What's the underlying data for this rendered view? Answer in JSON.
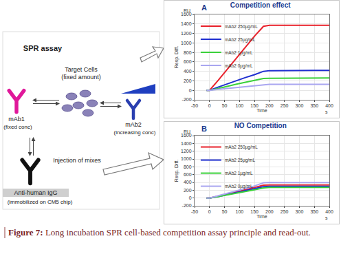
{
  "diagram": {
    "title": "SPR assay",
    "target": [
      "Target Cells",
      "(fixed amount)"
    ],
    "mab1": [
      "mAb1",
      "(fixed conc)"
    ],
    "mab2": [
      "mAb2",
      "(increasing conc)"
    ],
    "injection": "Injection of mixes",
    "capture": [
      "Anti-human IgG",
      "(immobilized on CM5 chip)"
    ]
  },
  "caption": {
    "label": "Figure 7:",
    "text": "Long incubation SPR cell-based competition assay principle and read-out."
  },
  "chart_data": [
    {
      "type": "line",
      "label": "A",
      "title": "Competition effect",
      "x_label": "Time",
      "x_unit": "s",
      "y_label": "Resp. Diff.",
      "y_unit": "RU",
      "x": [
        -10,
        0,
        30,
        60,
        90,
        120,
        150,
        180,
        200,
        250,
        300,
        350,
        400
      ],
      "series": [
        {
          "name": "mAb2 250µg/mL",
          "color": "#e8202a",
          "values": [
            0,
            0,
            220,
            450,
            680,
            910,
            1140,
            1350,
            1370,
            1370,
            1370,
            1370,
            1370
          ]
        },
        {
          "name": "mAb2 25µg/mL",
          "color": "#1f2fd0",
          "values": [
            0,
            0,
            70,
            140,
            200,
            270,
            330,
            400,
            415,
            420,
            420,
            420,
            420
          ]
        },
        {
          "name": "mAb2 1µg/mL",
          "color": "#3ad13a",
          "values": [
            0,
            0,
            40,
            90,
            130,
            170,
            210,
            250,
            255,
            258,
            260,
            260,
            260
          ]
        },
        {
          "name": "mAb2 0µg/mL",
          "color": "#a9a6f0",
          "values": [
            0,
            0,
            20,
            40,
            60,
            80,
            100,
            120,
            125,
            125,
            125,
            125,
            125
          ]
        }
      ],
      "xlim": [
        -50,
        400
      ],
      "xticks": [
        -50,
        0,
        50,
        100,
        150,
        200,
        250,
        300,
        350,
        400
      ],
      "ylim": [
        -200,
        1600
      ],
      "yticks": [
        -200,
        0,
        200,
        400,
        600,
        800,
        1000,
        1200,
        1400,
        1600
      ],
      "grid": true,
      "legend": "upper left"
    },
    {
      "type": "line",
      "label": "B",
      "title": "NO Competition",
      "x_label": "Time",
      "x_unit": "s",
      "y_label": "Resp. Diff.",
      "y_unit": "RU",
      "x": [
        -10,
        0,
        30,
        60,
        90,
        120,
        150,
        180,
        200,
        250,
        300,
        350,
        400
      ],
      "series": [
        {
          "name": "mAb2 250µg/mL",
          "color": "#e8202a",
          "values": [
            0,
            0,
            50,
            100,
            160,
            210,
            270,
            330,
            335,
            335,
            335,
            335,
            335
          ]
        },
        {
          "name": "mAb2 25µg/mL",
          "color": "#1f2fd0",
          "values": [
            0,
            0,
            40,
            90,
            140,
            190,
            240,
            290,
            300,
            300,
            300,
            300,
            300
          ]
        },
        {
          "name": "mAb2 1µg/mL",
          "color": "#3ad13a",
          "values": [
            0,
            0,
            40,
            80,
            120,
            170,
            210,
            260,
            270,
            270,
            270,
            270,
            270
          ]
        },
        {
          "name": "mAb2 0µg/mL",
          "color": "#a9a6f0",
          "values": [
            0,
            0,
            60,
            120,
            180,
            240,
            310,
            390,
            400,
            395,
            395,
            395,
            395
          ]
        }
      ],
      "xlim": [
        -50,
        400
      ],
      "xticks": [
        -50,
        0,
        50,
        100,
        150,
        200,
        250,
        300,
        350,
        400
      ],
      "ylim": [
        -200,
        1600
      ],
      "yticks": [
        -200,
        0,
        200,
        400,
        600,
        800,
        1000,
        1200,
        1400,
        1600
      ],
      "grid": true,
      "legend": "upper left"
    }
  ]
}
